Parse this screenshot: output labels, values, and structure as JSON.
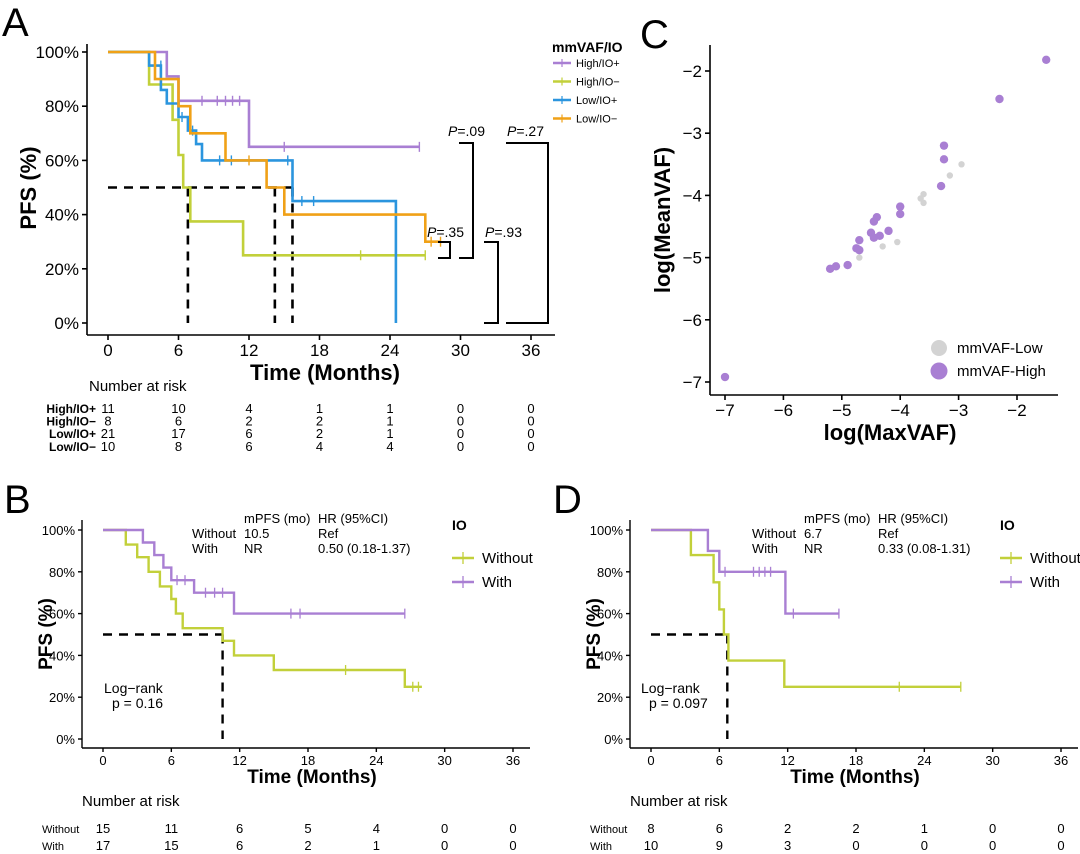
{
  "colors": {
    "high_io_pos": "#a97fd3",
    "high_io_neg": "#c2d03a",
    "low_io_pos": "#2b95de",
    "low_io_neg": "#f0a117",
    "io_without": "#c2d03a",
    "io_with": "#a97fd3",
    "vaf_low": "#d3d3d3",
    "vaf_high": "#a97fd3"
  },
  "chart_data": [
    {
      "panel": "A",
      "type": "line",
      "xlabel": "Time (Months)",
      "ylabel": "PFS (%)",
      "xlim": [
        -2,
        38
      ],
      "ylim": [
        0,
        100
      ],
      "xticks": [
        0,
        6,
        12,
        18,
        24,
        30,
        36
      ],
      "yticks": [
        "0%",
        "20%",
        "40%",
        "60%",
        "80%",
        "100%"
      ],
      "legend_title": "mmVAF/IO",
      "series": [
        {
          "name": "High/IO+",
          "color_key": "high_io_pos",
          "steps": [
            [
              0,
              100
            ],
            [
              5,
              100
            ],
            [
              5,
              91
            ],
            [
              6,
              91
            ],
            [
              6,
              82
            ],
            [
              12,
              82
            ],
            [
              12,
              65
            ],
            [
              26.5,
              65
            ]
          ],
          "censor": [
            [
              8,
              82
            ],
            [
              9.3,
              82
            ],
            [
              10,
              82
            ],
            [
              10.6,
              82
            ],
            [
              11.2,
              82
            ],
            [
              15,
              65
            ],
            [
              26.5,
              65
            ]
          ]
        },
        {
          "name": "High/IO−",
          "color_key": "high_io_neg",
          "steps": [
            [
              0,
              100
            ],
            [
              3.5,
              100
            ],
            [
              3.5,
              88
            ],
            [
              5.5,
              88
            ],
            [
              5.5,
              75
            ],
            [
              6,
              75
            ],
            [
              6,
              62
            ],
            [
              6.4,
              62
            ],
            [
              6.4,
              50
            ],
            [
              7,
              50
            ],
            [
              7,
              37.5
            ],
            [
              11.5,
              37.5
            ],
            [
              11.5,
              25
            ],
            [
              27,
              25
            ]
          ],
          "censor": [
            [
              21.5,
              25
            ],
            [
              27,
              25
            ]
          ]
        },
        {
          "name": "Low/IO+",
          "color_key": "low_io_pos",
          "steps": [
            [
              0,
              100
            ],
            [
              3.5,
              100
            ],
            [
              3.5,
              95
            ],
            [
              4.5,
              95
            ],
            [
              4.5,
              86
            ],
            [
              5,
              86
            ],
            [
              5,
              81
            ],
            [
              6,
              81
            ],
            [
              6,
              76
            ],
            [
              6.8,
              76
            ],
            [
              6.8,
              71
            ],
            [
              7.5,
              71
            ],
            [
              7.5,
              66
            ],
            [
              8,
              66
            ],
            [
              8,
              60
            ],
            [
              15.7,
              60
            ],
            [
              15.7,
              45
            ],
            [
              24.5,
              45
            ],
            [
              24.5,
              0
            ]
          ],
          "censor": [
            [
              4.5,
              95
            ],
            [
              6.3,
              76
            ],
            [
              7.2,
              71
            ],
            [
              9.5,
              60
            ],
            [
              10.5,
              60
            ],
            [
              15.3,
              60
            ],
            [
              16.5,
              45
            ],
            [
              17.5,
              45
            ]
          ]
        },
        {
          "name": "Low/IO−",
          "color_key": "low_io_neg",
          "steps": [
            [
              0,
              100
            ],
            [
              4,
              100
            ],
            [
              4,
              90
            ],
            [
              6,
              90
            ],
            [
              6,
              80
            ],
            [
              7,
              80
            ],
            [
              7,
              70
            ],
            [
              10,
              70
            ],
            [
              10,
              60
            ],
            [
              13.5,
              60
            ],
            [
              13.5,
              50
            ],
            [
              15,
              50
            ],
            [
              15,
              40
            ],
            [
              27,
              40
            ],
            [
              27,
              30
            ],
            [
              28.3,
              30
            ]
          ],
          "censor": [
            [
              12,
              60
            ],
            [
              27.5,
              30
            ],
            [
              28.3,
              30
            ]
          ]
        }
      ],
      "median_lines": [
        6.8,
        14.2,
        15.7
      ],
      "pvalues": [
        {
          "label": "P",
          "text": "=.09"
        },
        {
          "label": "P",
          "text": "=.27"
        },
        {
          "label": "P",
          "text": "=.35"
        },
        {
          "label": "P",
          "text": "=.93"
        }
      ],
      "risk_table": {
        "title": "Number at risk",
        "rows": [
          {
            "label": "High/IO+",
            "values": [
              "11",
              "10",
              "4",
              "1",
              "1",
              "0",
              "0"
            ]
          },
          {
            "label": "High/IO−",
            "values": [
              "8",
              "6",
              "2",
              "2",
              "1",
              "0",
              "0"
            ]
          },
          {
            "label": "Low/IO+",
            "values": [
              "21",
              "17",
              "6",
              "2",
              "1",
              "0",
              "0"
            ]
          },
          {
            "label": "Low/IO−",
            "values": [
              "10",
              "8",
              "6",
              "4",
              "4",
              "0",
              "0"
            ]
          }
        ]
      }
    },
    {
      "panel": "C",
      "type": "scatter",
      "xlabel": "log(MaxVAF)",
      "ylabel": "log(MeanVAF)",
      "xlim": [
        -7.1,
        -1.3
      ],
      "ylim": [
        -7.1,
        -1.6
      ],
      "xticks": [
        -7,
        -6,
        -5,
        -4,
        -3,
        -2
      ],
      "yticks": [
        -7,
        -6,
        -5,
        -4,
        -3,
        -2
      ],
      "legend": [
        "mmVAF-Low",
        "mmVAF-High"
      ],
      "points_low": [
        [
          -2.95,
          -3.5
        ],
        [
          -3.15,
          -3.68
        ],
        [
          -3.6,
          -3.98
        ],
        [
          -3.65,
          -4.05
        ],
        [
          -3.6,
          -4.12
        ],
        [
          -4.05,
          -4.75
        ],
        [
          -4.3,
          -4.82
        ],
        [
          -4.7,
          -5.0
        ]
      ],
      "points_high": [
        [
          -7.0,
          -6.92
        ],
        [
          -1.5,
          -1.82
        ],
        [
          -2.3,
          -2.45
        ],
        [
          -3.25,
          -3.2
        ],
        [
          -3.25,
          -3.42
        ],
        [
          -3.3,
          -3.85
        ],
        [
          -4.0,
          -4.18
        ],
        [
          -4.0,
          -4.3
        ],
        [
          -4.4,
          -4.35
        ],
        [
          -4.45,
          -4.42
        ],
        [
          -4.5,
          -4.6
        ],
        [
          -4.2,
          -4.57
        ],
        [
          -4.35,
          -4.65
        ],
        [
          -4.45,
          -4.68
        ],
        [
          -4.7,
          -4.72
        ],
        [
          -4.7,
          -4.88
        ],
        [
          -4.75,
          -4.85
        ],
        [
          -4.9,
          -5.12
        ],
        [
          -5.1,
          -5.14
        ],
        [
          -5.2,
          -5.18
        ]
      ]
    },
    {
      "panel": "B",
      "type": "line",
      "xlabel": "Time (Months)",
      "ylabel": "PFS (%)",
      "xlim": [
        -2,
        38
      ],
      "ylim": [
        0,
        100
      ],
      "xticks": [
        0,
        6,
        12,
        18,
        24,
        30,
        36
      ],
      "yticks": [
        "0%",
        "20%",
        "40%",
        "60%",
        "80%",
        "100%"
      ],
      "legend_title": "IO",
      "series": [
        {
          "name": "Without",
          "color_key": "io_without",
          "steps": [
            [
              0,
              100
            ],
            [
              2,
              100
            ],
            [
              2,
              93
            ],
            [
              3,
              93
            ],
            [
              3,
              87
            ],
            [
              4,
              87
            ],
            [
              4,
              80
            ],
            [
              5,
              80
            ],
            [
              5,
              73
            ],
            [
              6,
              73
            ],
            [
              6,
              67
            ],
            [
              6.4,
              67
            ],
            [
              6.4,
              60
            ],
            [
              7,
              60
            ],
            [
              7,
              53
            ],
            [
              10.5,
              53
            ],
            [
              10.5,
              47
            ],
            [
              11.5,
              47
            ],
            [
              11.5,
              40
            ],
            [
              15,
              40
            ],
            [
              15,
              33
            ],
            [
              26.5,
              33
            ],
            [
              26.5,
              25
            ],
            [
              28,
              25
            ]
          ],
          "censor": [
            [
              21.3,
              33
            ],
            [
              27.2,
              25
            ],
            [
              27.7,
              25
            ]
          ]
        },
        {
          "name": "With",
          "color_key": "io_with",
          "steps": [
            [
              0,
              100
            ],
            [
              3.5,
              100
            ],
            [
              3.5,
              94
            ],
            [
              4.5,
              94
            ],
            [
              4.5,
              88
            ],
            [
              5.3,
              88
            ],
            [
              5.3,
              82
            ],
            [
              6,
              82
            ],
            [
              6,
              76
            ],
            [
              8,
              76
            ],
            [
              8,
              70
            ],
            [
              11.5,
              70
            ],
            [
              11.5,
              60
            ],
            [
              26.5,
              60
            ]
          ],
          "censor": [
            [
              6.5,
              76
            ],
            [
              7.2,
              76
            ],
            [
              9,
              70
            ],
            [
              9.8,
              70
            ],
            [
              10.5,
              70
            ],
            [
              16.5,
              60
            ],
            [
              17.3,
              60
            ],
            [
              26.5,
              60
            ]
          ]
        }
      ],
      "median_lines": [
        10.5
      ],
      "stats_header": {
        "c1": "mPFS (mo)",
        "c2": "HR (95%CI)"
      },
      "stats_rows": [
        {
          "group": "Without",
          "mpfs": "10.5",
          "hr": "Ref"
        },
        {
          "group": "With",
          "mpfs": "NR",
          "hr": "0.50 (0.18-1.37)"
        }
      ],
      "logrank": {
        "line1": "Log−rank",
        "line2": "p = 0.16"
      },
      "risk_table": {
        "title": "Number at risk",
        "rows": [
          {
            "label": "Without",
            "values": [
              "15",
              "11",
              "6",
              "5",
              "4",
              "0",
              "0"
            ]
          },
          {
            "label": "With",
            "values": [
              "17",
              "15",
              "6",
              "2",
              "1",
              "0",
              "0"
            ]
          }
        ]
      }
    },
    {
      "panel": "D",
      "type": "line",
      "xlabel": "Time (Months)",
      "ylabel": "PFS (%)",
      "xlim": [
        -2,
        38
      ],
      "ylim": [
        0,
        100
      ],
      "xticks": [
        0,
        6,
        12,
        18,
        24,
        30,
        36
      ],
      "yticks": [
        "0%",
        "20%",
        "40%",
        "60%",
        "80%",
        "100%"
      ],
      "legend_title": "IO",
      "series": [
        {
          "name": "Without",
          "color_key": "io_without",
          "steps": [
            [
              0,
              100
            ],
            [
              3.5,
              100
            ],
            [
              3.5,
              88
            ],
            [
              5.5,
              88
            ],
            [
              5.5,
              75
            ],
            [
              6,
              75
            ],
            [
              6,
              62
            ],
            [
              6.4,
              62
            ],
            [
              6.4,
              50
            ],
            [
              6.8,
              50
            ],
            [
              6.8,
              37.5
            ],
            [
              11.7,
              37.5
            ],
            [
              11.7,
              25
            ],
            [
              27.2,
              25
            ]
          ],
          "censor": [
            [
              21.8,
              25
            ],
            [
              27.2,
              25
            ]
          ]
        },
        {
          "name": "With",
          "color_key": "io_with",
          "steps": [
            [
              0,
              100
            ],
            [
              5,
              100
            ],
            [
              5,
              90
            ],
            [
              6,
              90
            ],
            [
              6,
              80
            ],
            [
              11.8,
              80
            ],
            [
              11.8,
              60
            ],
            [
              16.5,
              60
            ]
          ],
          "censor": [
            [
              6.5,
              80
            ],
            [
              9,
              80
            ],
            [
              9.5,
              80
            ],
            [
              10,
              80
            ],
            [
              10.5,
              80
            ],
            [
              12.5,
              60
            ],
            [
              16.5,
              60
            ]
          ]
        }
      ],
      "median_lines": [
        6.7
      ],
      "stats_header": {
        "c1": "mPFS (mo)",
        "c2": "HR (95%CI)"
      },
      "stats_rows": [
        {
          "group": "Without",
          "mpfs": "6.7",
          "hr": "Ref"
        },
        {
          "group": "With",
          "mpfs": "NR",
          "hr": "0.33 (0.08-1.31)"
        }
      ],
      "logrank": {
        "line1": "Log−rank",
        "line2": "p = 0.097"
      },
      "risk_table": {
        "title": "Number at risk",
        "rows": [
          {
            "label": "Without",
            "values": [
              "8",
              "6",
              "2",
              "2",
              "1",
              "0",
              "0"
            ]
          },
          {
            "label": "With",
            "values": [
              "10",
              "9",
              "3",
              "0",
              "0",
              "0",
              "0"
            ]
          }
        ]
      }
    }
  ],
  "panel_labels": {
    "a": "A",
    "b": "B",
    "c": "C",
    "d": "D"
  }
}
